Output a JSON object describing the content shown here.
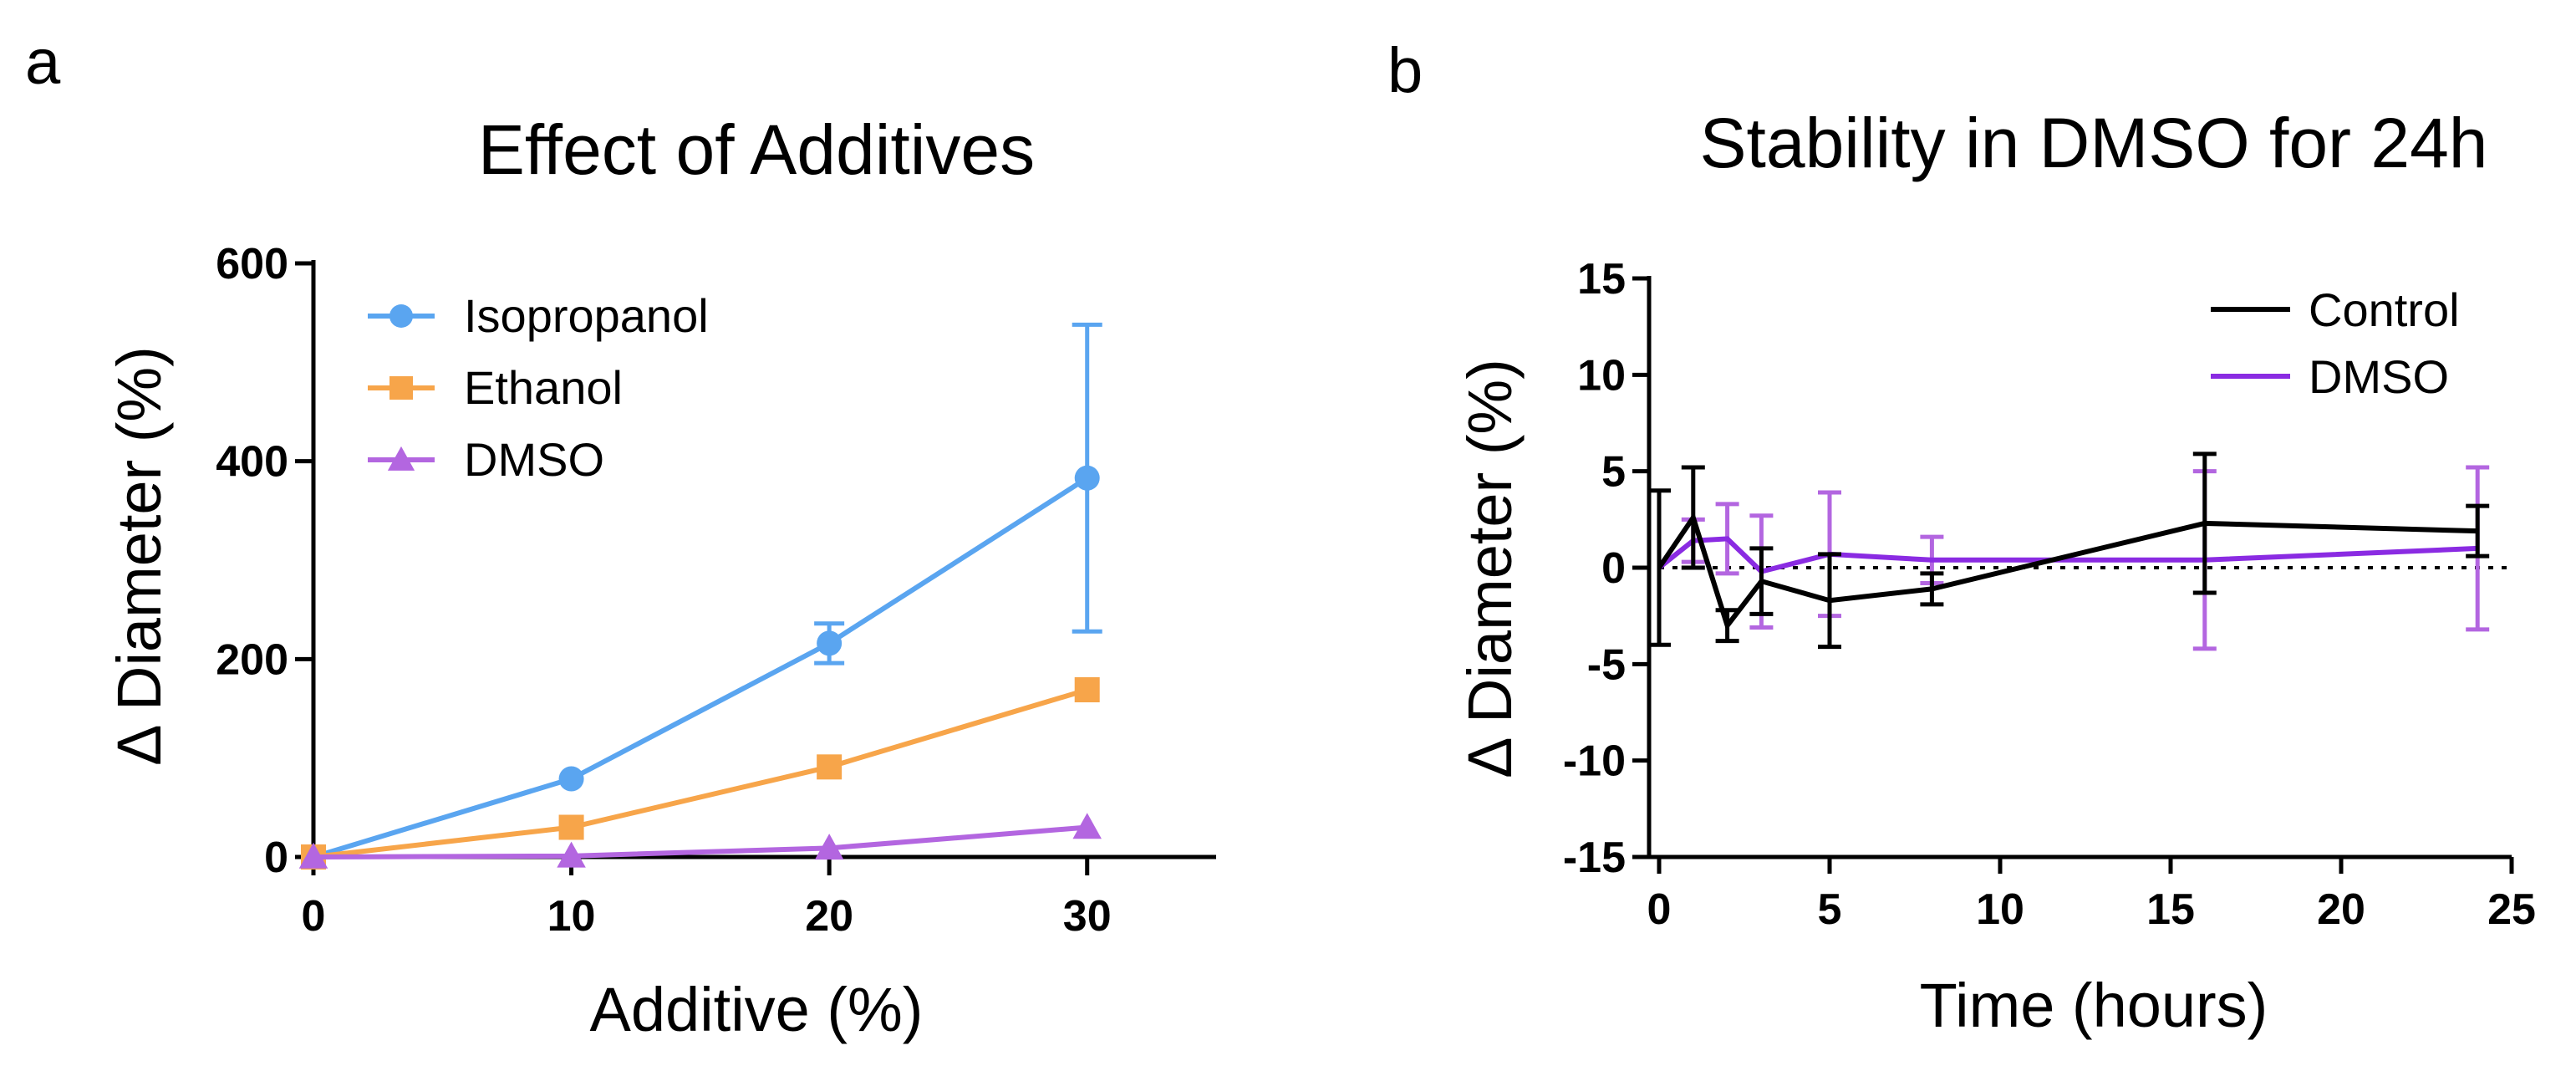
{
  "chart_data": [
    {
      "panel": "a",
      "type": "line",
      "title": "Effect of Additives",
      "xlabel": "Additive (%)",
      "ylabel": "Δ Diameter (%)",
      "xlim": [
        0,
        35
      ],
      "ylim": [
        0,
        600
      ],
      "xticks": [
        0,
        10,
        20,
        30
      ],
      "yticks": [
        0,
        200,
        400,
        600
      ],
      "legend_position": "top-left",
      "series": [
        {
          "name": "Isopropanol",
          "color": "#5aa5f0",
          "marker": "circle",
          "x": [
            0,
            10,
            20,
            30
          ],
          "y": [
            0,
            79,
            216,
            383
          ],
          "err": [
            0,
            0,
            20,
            155
          ]
        },
        {
          "name": "Ethanol",
          "color": "#f7a54a",
          "marker": "square",
          "x": [
            0,
            10,
            20,
            30
          ],
          "y": [
            0,
            30,
            91,
            169
          ],
          "err": [
            0,
            0,
            0,
            0
          ]
        },
        {
          "name": "DMSO",
          "color": "#b366e0",
          "marker": "triangle",
          "x": [
            0,
            10,
            20,
            30
          ],
          "y": [
            0,
            1,
            9,
            30
          ],
          "err": [
            0,
            0,
            0,
            0
          ]
        }
      ]
    },
    {
      "panel": "b",
      "type": "line",
      "title": "Stability in DMSO for 24h",
      "xlabel": "Time (hours)",
      "ylabel": "Δ Diameter (%)",
      "xlim": [
        0,
        25
      ],
      "ylim": [
        -15,
        15
      ],
      "xticks": [
        0,
        5,
        10,
        15,
        20,
        25
      ],
      "yticks": [
        -15,
        -10,
        -5,
        0,
        5,
        10,
        15
      ],
      "reference_line": 0,
      "legend_position": "top-right",
      "series": [
        {
          "name": "Control",
          "color": "#000000",
          "x": [
            0,
            1,
            2,
            3,
            5,
            8,
            16,
            24
          ],
          "y": [
            0,
            2.6,
            -3.0,
            -0.7,
            -1.7,
            -1.1,
            2.3,
            1.9
          ],
          "err": [
            4.0,
            2.6,
            0.8,
            1.7,
            2.4,
            0.8,
            3.6,
            1.3
          ]
        },
        {
          "name": "DMSO",
          "color": "#8a2be2",
          "x": [
            0,
            1,
            2,
            3,
            5,
            8,
            16,
            24
          ],
          "y": [
            0,
            1.4,
            1.5,
            -0.2,
            0.7,
            0.4,
            0.4,
            1.0
          ],
          "err": [
            0,
            1.1,
            1.8,
            2.9,
            3.2,
            1.2,
            4.6,
            4.2
          ]
        }
      ]
    }
  ]
}
